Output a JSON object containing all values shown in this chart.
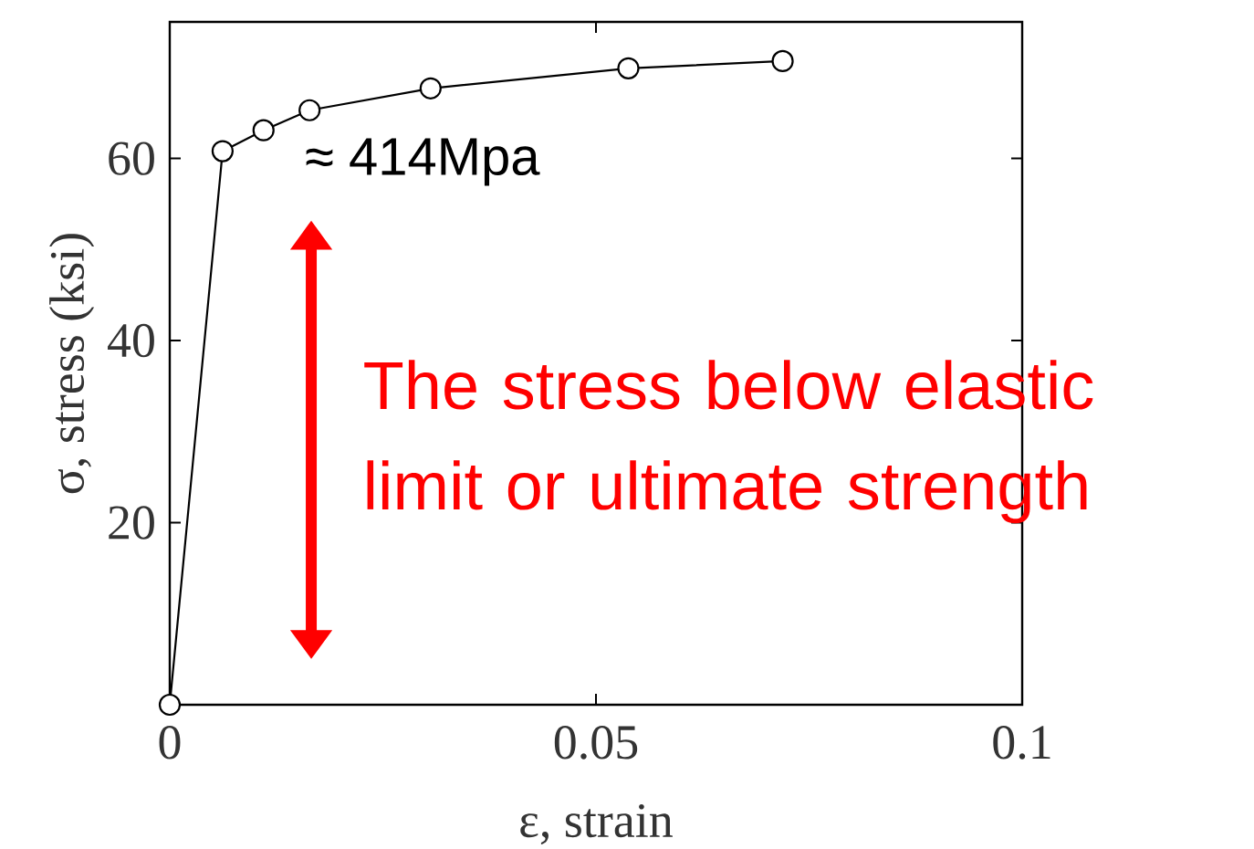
{
  "chart_data": {
    "type": "line",
    "xlabel": "ε, strain",
    "ylabel": "σ, stress (ksi)",
    "x": [
      0,
      0.0062,
      0.011,
      0.0164,
      0.0306,
      0.0538,
      0.0719
    ],
    "values": [
      0,
      60.8,
      63.1,
      65.3,
      67.7,
      69.9,
      70.7
    ],
    "color": "#000000",
    "marker": "circle",
    "line_style": "solid",
    "xlim": [
      0,
      0.1
    ],
    "ylim": [
      0,
      75
    ],
    "xticks": [
      0,
      0.05,
      0.1
    ],
    "yticks": [
      20,
      40,
      60
    ],
    "annotations": [
      "≈ 414Mpa",
      "The stress below elastic limit or ultimate strength"
    ]
  }
}
